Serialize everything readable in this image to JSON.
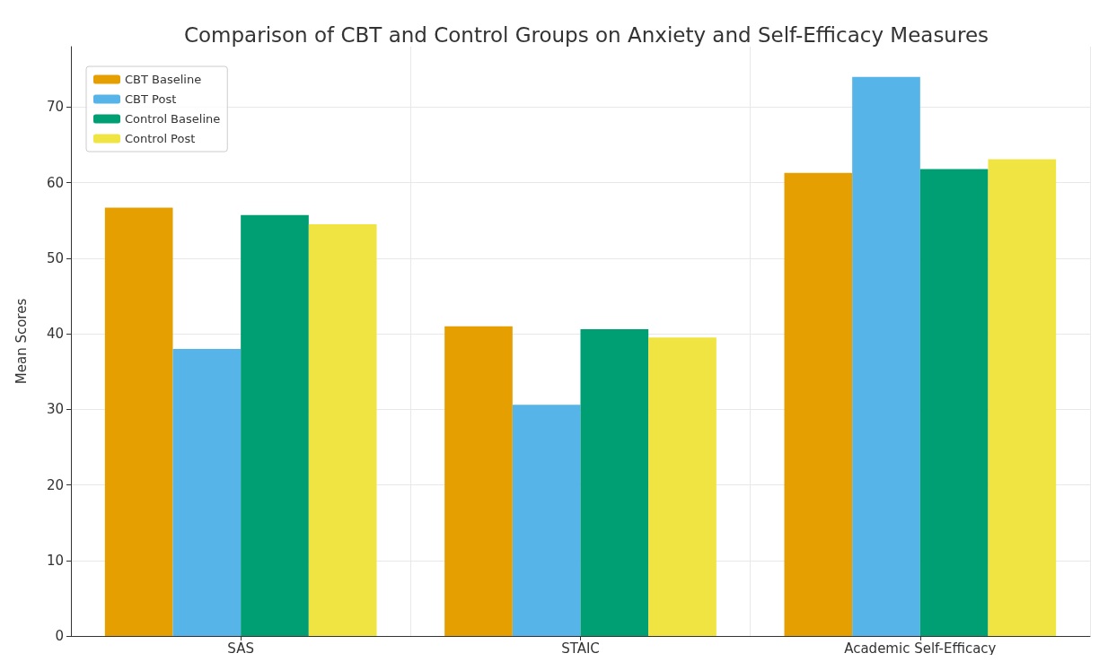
{
  "chart_data": {
    "type": "bar",
    "title": "Comparison of CBT and Control Groups on Anxiety and Self-Efficacy Measures",
    "ylabel": "Mean Scores",
    "categories": [
      "SAS",
      "STAIC",
      "Academic Self-Efficacy"
    ],
    "series": [
      {
        "name": "CBT Baseline",
        "color": "#e69f00",
        "values": [
          56.7,
          41.0,
          61.3
        ]
      },
      {
        "name": "CBT Post",
        "color": "#56b4e9",
        "values": [
          38.0,
          30.6,
          74.0
        ]
      },
      {
        "name": "Control Baseline",
        "color": "#009e73",
        "values": [
          55.7,
          40.6,
          61.8
        ]
      },
      {
        "name": "Control Post",
        "color": "#f0e442",
        "values": [
          54.5,
          39.5,
          63.1
        ]
      }
    ],
    "ylim": [
      0,
      78
    ],
    "yticks": [
      0,
      10,
      20,
      30,
      40,
      50,
      60,
      70
    ],
    "grid": true,
    "legend": "top left"
  }
}
